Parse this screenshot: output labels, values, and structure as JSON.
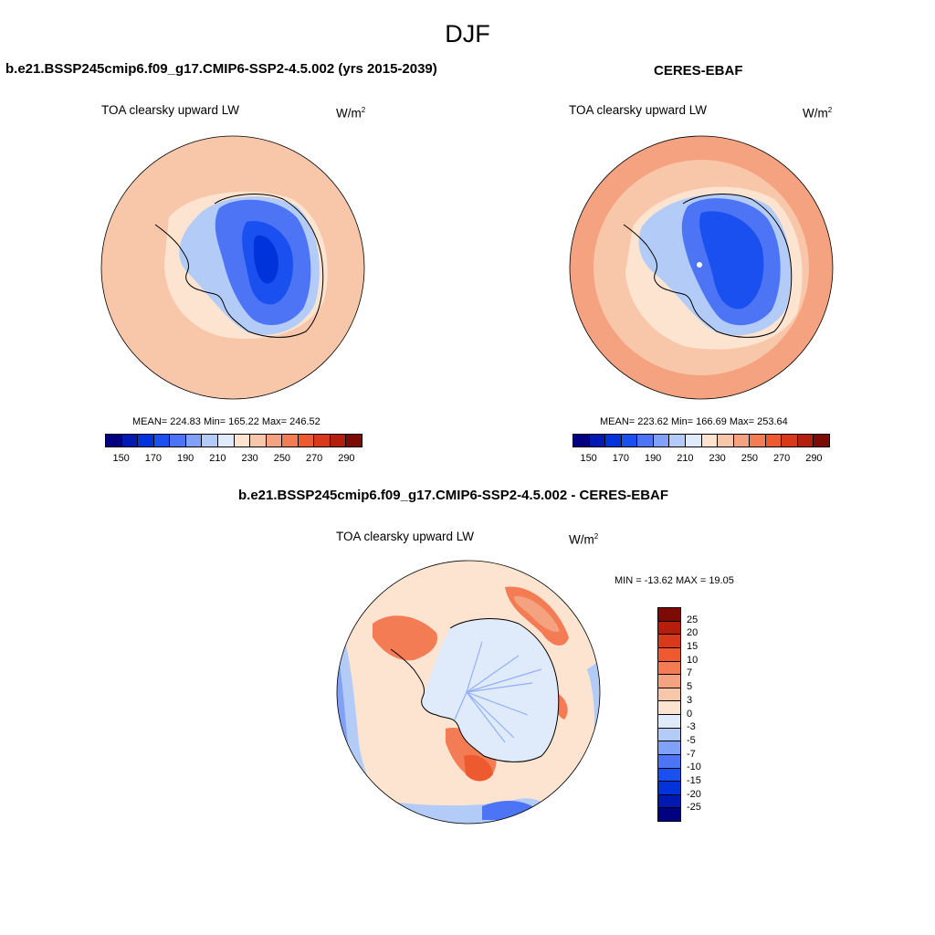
{
  "title": "DJF",
  "panels": {
    "model": {
      "header": "b.e21.BSSP245cmip6.f09_g17.CMIP6-SSP2-4.5.002 (yrs 2015-2039)",
      "variable": "TOA clearsky upward LW",
      "units": "W/m",
      "units_sup": "2",
      "stats": "MEAN= 224.83  Min= 165.22  Max= 246.52"
    },
    "obs": {
      "header": "CERES-EBAF",
      "variable": "TOA clearsky upward LW",
      "units": "W/m",
      "units_sup": "2",
      "stats": "MEAN= 223.62  Min= 166.69  Max= 253.64"
    },
    "diff": {
      "header": "b.e21.BSSP245cmip6.f09_g17.CMIP6-SSP2-4.5.002 - CERES-EBAF",
      "variable": "TOA clearsky upward LW",
      "units": "W/m",
      "units_sup": "2",
      "stats": "MIN = -13.62 MAX =  19.05"
    }
  },
  "colorbar_abs": {
    "colors": [
      "#000080",
      "#0019b3",
      "#0033d9",
      "#1a4ff0",
      "#4d74f5",
      "#80a1f7",
      "#b3ccf7",
      "#dfeafb",
      "#fde4d0",
      "#f8c7aa",
      "#f4a27f",
      "#f47c55",
      "#ee5a2f",
      "#d8391a",
      "#b31e0d",
      "#7c0a05"
    ],
    "labels": [
      "150",
      "170",
      "190",
      "210",
      "230",
      "250",
      "270",
      "290"
    ]
  },
  "colorbar_diff": {
    "colors": [
      "#7c0a05",
      "#b31e0d",
      "#d8391a",
      "#ee5a2f",
      "#f47c55",
      "#f4a27f",
      "#f8c7aa",
      "#fde4d0",
      "#dfeafb",
      "#b3ccf7",
      "#80a1f7",
      "#4d74f5",
      "#1a4ff0",
      "#0033d9",
      "#0019b3",
      "#000080"
    ],
    "labels": [
      "25",
      "20",
      "15",
      "10",
      "7",
      "5",
      "3",
      "0",
      "-3",
      "-5",
      "-7",
      "-10",
      "-15",
      "-20",
      "-25"
    ]
  },
  "map_colors": {
    "ocean_abs": "#f8c7aa",
    "ring_abs": "#f4a27f",
    "inner_abs": "#fde4d0",
    "ice_outer": "#b3ccf7",
    "ice_mid": "#4d74f5",
    "ice_core": "#1a4ff0",
    "ice_deep": "#0033d9",
    "diff_ocean": "#fde4d0",
    "diff_blue": "#b3ccf7",
    "diff_red": "#f47c55",
    "diff_land": "#dfeafb"
  }
}
